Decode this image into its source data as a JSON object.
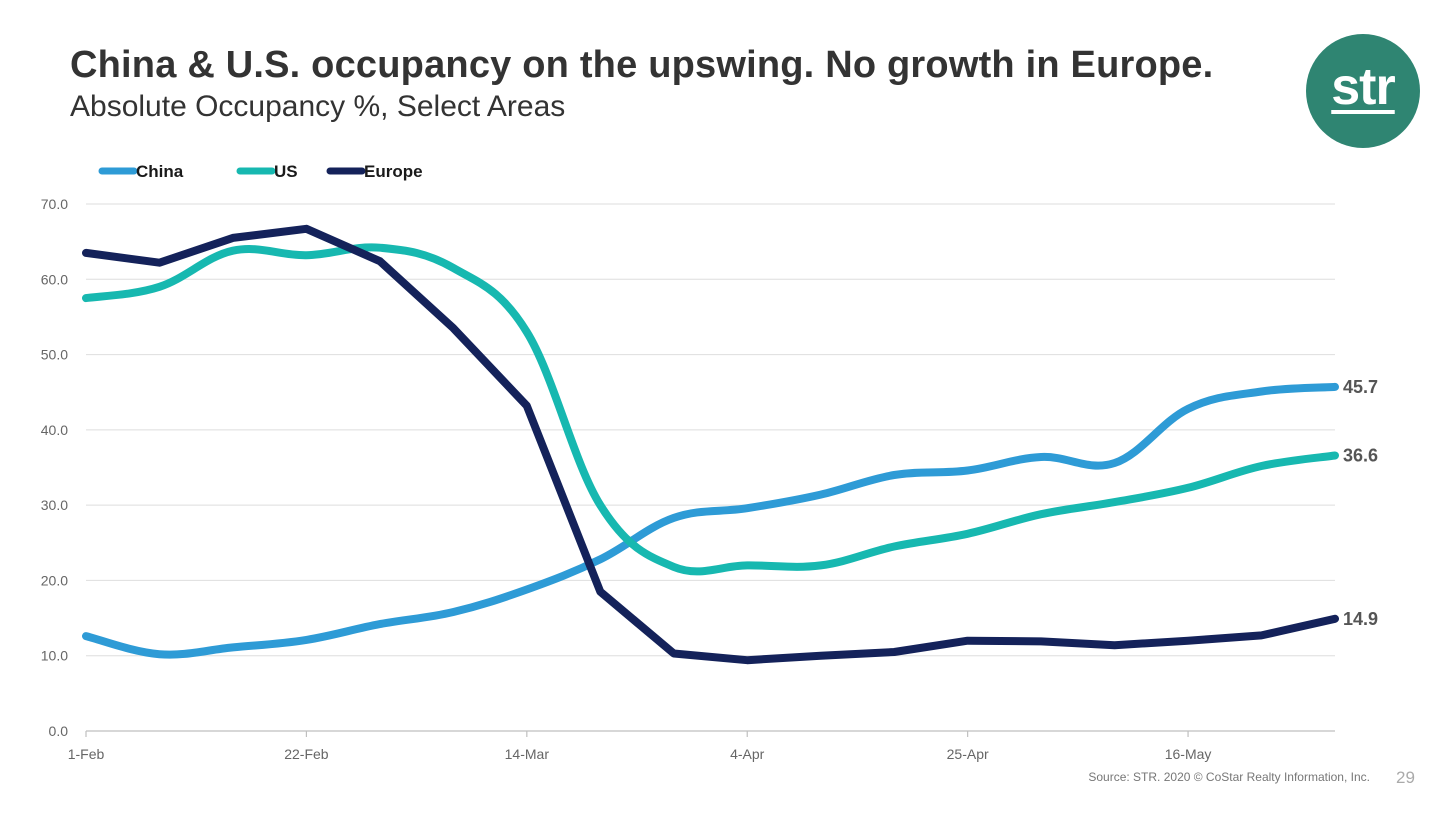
{
  "slide": {
    "title": "China & U.S. occupancy on the upswing. No growth in Europe.",
    "subtitle": "Absolute Occupancy %, Select Areas",
    "logo_text": "str",
    "logo_color": "#2f8572",
    "source": "Source: STR. 2020 © CoStar Realty Information, Inc.",
    "page_number": "29"
  },
  "chart_data": {
    "type": "line",
    "x_tick_labels": [
      "1-Feb",
      "22-Feb",
      "14-Mar",
      "4-Apr",
      "25-Apr",
      "16-May"
    ],
    "x_tick_weeks": [
      0,
      3,
      6,
      9,
      12,
      15
    ],
    "x_weeks": [
      0,
      1,
      2,
      3,
      4,
      5,
      6,
      7,
      8,
      9,
      10,
      11,
      12,
      13,
      14,
      15,
      16,
      17
    ],
    "ylim": [
      0,
      70
    ],
    "y_ticks": [
      "0.0",
      "10.0",
      "20.0",
      "30.0",
      "40.0",
      "50.0",
      "60.0",
      "70.0"
    ],
    "grid": true,
    "legend_position": "top-left",
    "series": [
      {
        "name": "China",
        "color": "#2e9bd6",
        "values": [
          12.6,
          10.2,
          11.1,
          12.1,
          14.2,
          15.8,
          18.8,
          22.8,
          28.3,
          29.6,
          31.4,
          34.0,
          34.6,
          36.4,
          35.6,
          42.8,
          45.1,
          45.7
        ],
        "end_label": "45.7"
      },
      {
        "name": "US",
        "color": "#17b8b0",
        "values": [
          57.5,
          59.0,
          63.8,
          63.2,
          64.2,
          61.5,
          53.0,
          30.0,
          21.8,
          22.0,
          22.0,
          24.5,
          26.2,
          28.8,
          30.4,
          32.3,
          35.2,
          36.6
        ],
        "end_label": "36.6"
      },
      {
        "name": "Europe",
        "color": "#14225a",
        "values": [
          63.5,
          62.2,
          65.5,
          66.7,
          62.4,
          53.5,
          43.2,
          18.5,
          10.3,
          9.4,
          10.0,
          10.5,
          12.0,
          11.9,
          11.4,
          12.0,
          12.7,
          14.9
        ],
        "end_label": "14.9"
      }
    ]
  }
}
